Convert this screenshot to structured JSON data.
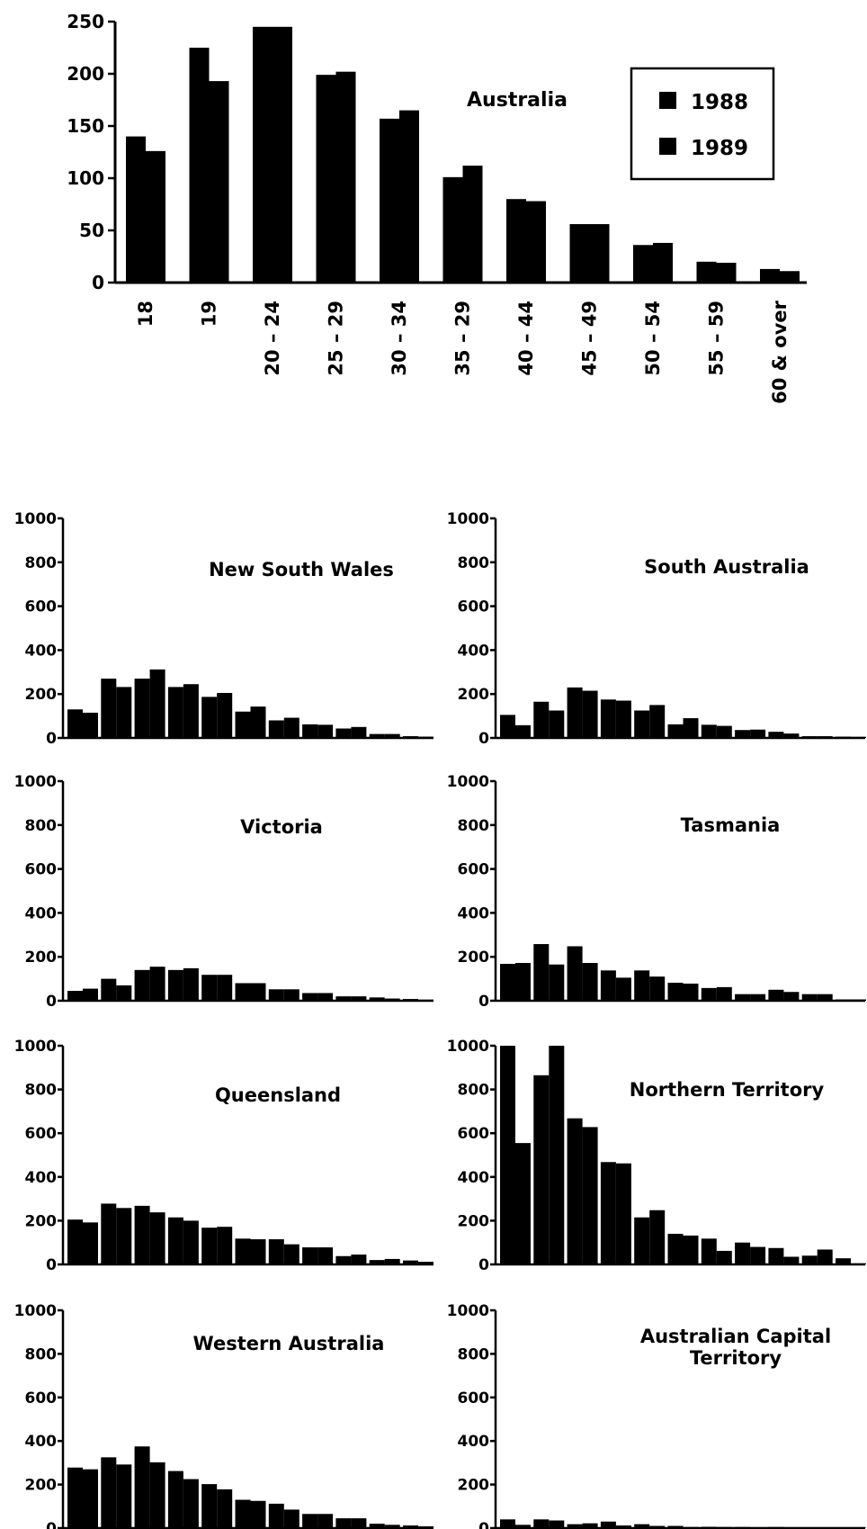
{
  "chart_data": [
    {
      "type": "bar",
      "title": "Australia",
      "categories": [
        "18",
        "19",
        "20 – 24",
        "25 – 29",
        "30 – 34",
        "35 – 29",
        "40 – 44",
        "45 – 49",
        "50 – 54",
        "55 – 59",
        "60 & over"
      ],
      "series": [
        {
          "name": "1988",
          "values": [
            140,
            225,
            245,
            199,
            157,
            101,
            80,
            56,
            36,
            20,
            13
          ]
        },
        {
          "name": "1989",
          "values": [
            126,
            193,
            245,
            202,
            165,
            112,
            78,
            56,
            38,
            19,
            11
          ]
        }
      ],
      "ylim": [
        0,
        250
      ],
      "yticks": [
        0,
        50,
        100,
        150,
        200,
        250
      ],
      "legend_position": "top-right"
    },
    {
      "type": "bar",
      "title": "New South Wales",
      "series": [
        {
          "name": "1988",
          "values": [
            130,
            270,
            270,
            232,
            187,
            120,
            80,
            62,
            43,
            18,
            8
          ]
        },
        {
          "name": "1989",
          "values": [
            115,
            232,
            312,
            245,
            205,
            143,
            92,
            60,
            50,
            18,
            6
          ]
        }
      ],
      "ylim": [
        0,
        1000
      ],
      "yticks": [
        0,
        200,
        400,
        600,
        800,
        1000
      ]
    },
    {
      "type": "bar",
      "title": "South Australia",
      "series": [
        {
          "name": "1988",
          "values": [
            105,
            165,
            230,
            175,
            125,
            62,
            60,
            36,
            28,
            8,
            6
          ]
        },
        {
          "name": "1989",
          "values": [
            58,
            125,
            215,
            170,
            150,
            90,
            55,
            38,
            20,
            8,
            5
          ]
        }
      ],
      "ylim": [
        0,
        1000
      ],
      "yticks": [
        0,
        200,
        400,
        600,
        800,
        1000
      ]
    },
    {
      "type": "bar",
      "title": "Victoria",
      "series": [
        {
          "name": "1988",
          "values": [
            45,
            100,
            140,
            140,
            118,
            80,
            52,
            35,
            20,
            15,
            8
          ]
        },
        {
          "name": "1989",
          "values": [
            55,
            70,
            155,
            148,
            118,
            80,
            52,
            35,
            20,
            10,
            5
          ]
        }
      ],
      "ylim": [
        0,
        1000
      ],
      "yticks": [
        0,
        200,
        400,
        600,
        800,
        1000
      ]
    },
    {
      "type": "bar",
      "title": "Tasmania",
      "series": [
        {
          "name": "1988",
          "values": [
            168,
            258,
            248,
            138,
            138,
            82,
            58,
            30,
            50,
            30,
            6
          ]
        },
        {
          "name": "1989",
          "values": [
            172,
            165,
            172,
            105,
            110,
            78,
            62,
            30,
            40,
            30,
            6
          ]
        }
      ],
      "ylim": [
        0,
        1000
      ],
      "yticks": [
        0,
        200,
        400,
        600,
        800,
        1000
      ]
    },
    {
      "type": "bar",
      "title": "Queensland",
      "series": [
        {
          "name": "1988",
          "values": [
            205,
            278,
            268,
            215,
            168,
            118,
            115,
            78,
            38,
            20,
            18
          ]
        },
        {
          "name": "1989",
          "values": [
            192,
            258,
            238,
            200,
            172,
            115,
            92,
            78,
            45,
            25,
            12
          ]
        }
      ],
      "ylim": [
        0,
        1000
      ],
      "yticks": [
        0,
        200,
        400,
        600,
        800,
        1000
      ]
    },
    {
      "type": "bar",
      "title": "Northern Territory",
      "series": [
        {
          "name": "1988",
          "values": [
            1000,
            865,
            668,
            468,
            215,
            140,
            118,
            100,
            75,
            40,
            28
          ]
        },
        {
          "name": "1989",
          "values": [
            555,
            1000,
            628,
            462,
            248,
            132,
            62,
            80,
            35,
            68,
            5
          ]
        }
      ],
      "ylim": [
        0,
        1000
      ],
      "yticks": [
        0,
        200,
        400,
        600,
        800,
        1000
      ]
    },
    {
      "type": "bar",
      "title": "Western Australia",
      "series": [
        {
          "name": "1988",
          "values": [
            278,
            325,
            375,
            262,
            202,
            130,
            112,
            65,
            45,
            20,
            12
          ]
        },
        {
          "name": "1989",
          "values": [
            270,
            292,
            302,
            225,
            178,
            125,
            85,
            65,
            45,
            15,
            8
          ]
        }
      ],
      "ylim": [
        0,
        1000
      ],
      "yticks": [
        0,
        200,
        400,
        600,
        800,
        1000
      ]
    },
    {
      "type": "bar",
      "title": "Australian Capital Territory",
      "series": [
        {
          "name": "1988",
          "values": [
            40,
            40,
            18,
            30,
            18,
            10,
            6,
            5,
            5,
            3,
            3
          ]
        },
        {
          "name": "1989",
          "values": [
            15,
            35,
            22,
            12,
            10,
            5,
            5,
            3,
            3,
            2,
            2
          ]
        }
      ],
      "ylim": [
        0,
        1000
      ],
      "yticks": [
        0,
        200,
        400,
        600,
        800,
        1000
      ]
    }
  ]
}
